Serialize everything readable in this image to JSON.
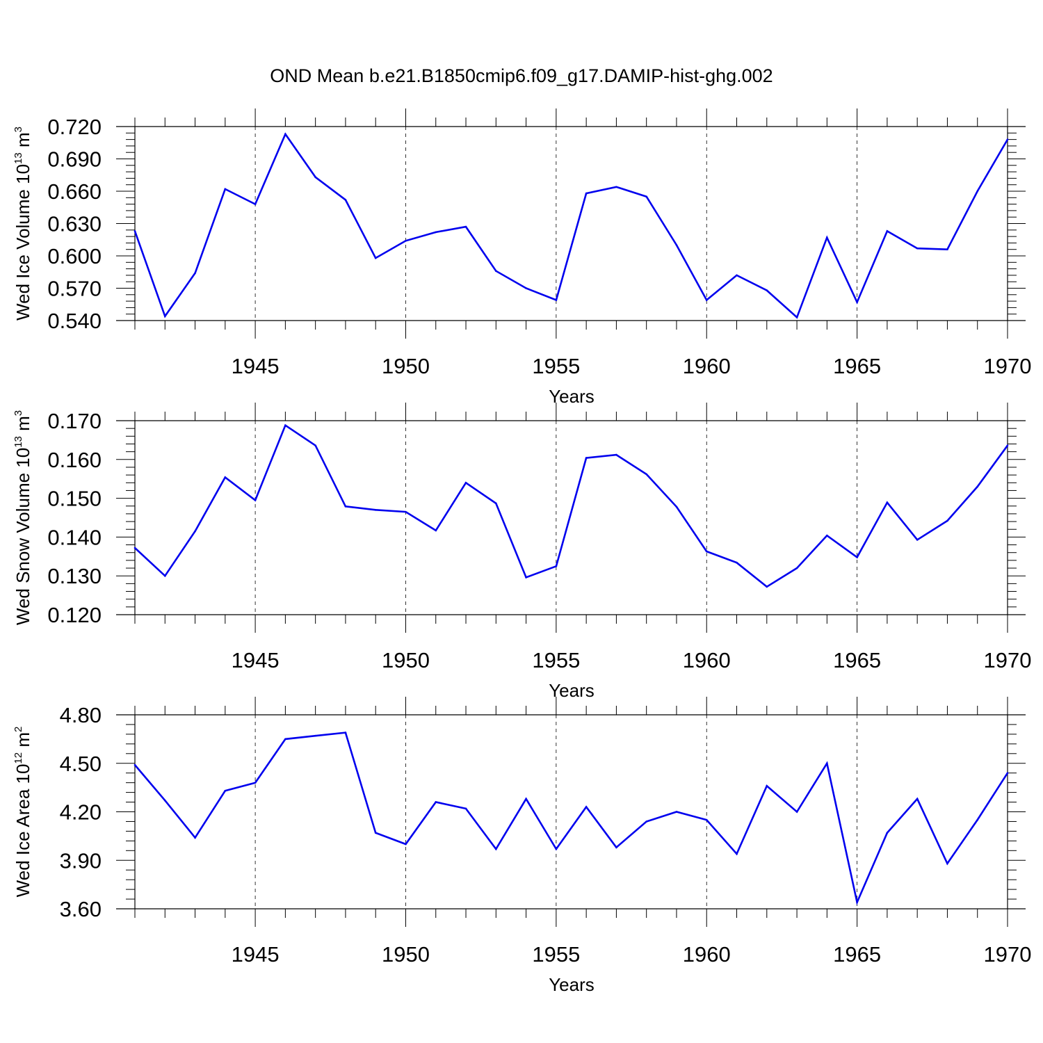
{
  "title": "OND Mean b.e21.B1850cmip6.f09_g17.DAMIP-hist-ghg.002",
  "colors": {
    "series": "#0000ee",
    "axis": "#000000",
    "grid": "#000000"
  },
  "chart_data": [
    {
      "type": "line",
      "series_name": "Wed Ice Volume",
      "ylabel": {
        "prefix": "Wed Ice Volume 10",
        "exp": "13",
        "unit": " m",
        "unit_exp": "3"
      },
      "xlabel": "Years",
      "xlim": [
        1941,
        1970
      ],
      "ylim": [
        0.54,
        0.72
      ],
      "yticks": [
        "0.720",
        "0.690",
        "0.660",
        "0.630",
        "0.600",
        "0.570",
        "0.540"
      ],
      "ytick_values": [
        0.72,
        0.69,
        0.66,
        0.63,
        0.6,
        0.57,
        0.54
      ],
      "xticks": [
        "1945",
        "1950",
        "1955",
        "1960",
        "1965",
        "1970"
      ],
      "xtick_values": [
        1945,
        1950,
        1955,
        1960,
        1965,
        1970
      ],
      "x": [
        1941,
        1942,
        1943,
        1944,
        1945,
        1946,
        1947,
        1948,
        1949,
        1950,
        1951,
        1952,
        1953,
        1954,
        1955,
        1956,
        1957,
        1958,
        1959,
        1960,
        1961,
        1962,
        1963,
        1964,
        1965,
        1966,
        1967,
        1968,
        1969,
        1970
      ],
      "values": [
        0.623,
        0.544,
        0.584,
        0.662,
        0.648,
        0.713,
        0.673,
        0.652,
        0.598,
        0.614,
        0.622,
        0.627,
        0.586,
        0.57,
        0.559,
        0.658,
        0.664,
        0.655,
        0.61,
        0.559,
        0.582,
        0.568,
        0.543,
        0.617,
        0.557,
        0.623,
        0.607,
        0.606,
        0.66,
        0.708
      ],
      "grid": "vertical dashed at major x ticks"
    },
    {
      "type": "line",
      "series_name": "Wed Snow Volume",
      "ylabel": {
        "prefix": "Wed Snow Volume 10",
        "exp": "13",
        "unit": " m",
        "unit_exp": "3"
      },
      "xlabel": "Years",
      "xlim": [
        1941,
        1970
      ],
      "ylim": [
        0.12,
        0.17
      ],
      "yticks": [
        "0.170",
        "0.160",
        "0.150",
        "0.140",
        "0.130",
        "0.120"
      ],
      "ytick_values": [
        0.17,
        0.16,
        0.15,
        0.14,
        0.13,
        0.12
      ],
      "xticks": [
        "1945",
        "1950",
        "1955",
        "1960",
        "1965",
        "1970"
      ],
      "xtick_values": [
        1945,
        1950,
        1955,
        1960,
        1965,
        1970
      ],
      "x": [
        1941,
        1942,
        1943,
        1944,
        1945,
        1946,
        1947,
        1948,
        1949,
        1950,
        1951,
        1952,
        1953,
        1954,
        1955,
        1956,
        1957,
        1958,
        1959,
        1960,
        1961,
        1962,
        1963,
        1964,
        1965,
        1966,
        1967,
        1968,
        1969,
        1970
      ],
      "values": [
        0.1372,
        0.13,
        0.1415,
        0.1554,
        0.1495,
        0.1688,
        0.1636,
        0.1479,
        0.147,
        0.1465,
        0.1417,
        0.154,
        0.1487,
        0.1296,
        0.1325,
        0.1604,
        0.1612,
        0.1562,
        0.1478,
        0.1363,
        0.1334,
        0.1272,
        0.132,
        0.1404,
        0.1348,
        0.1489,
        0.1393,
        0.1442,
        0.153,
        0.1636
      ],
      "grid": "vertical dashed at major x ticks"
    },
    {
      "type": "line",
      "series_name": "Wed Ice Area",
      "ylabel": {
        "prefix": "Wed Ice Area 10",
        "exp": "12",
        "unit": " m",
        "unit_exp": "2"
      },
      "xlabel": "Years",
      "xlim": [
        1941,
        1970
      ],
      "ylim": [
        3.6,
        4.8
      ],
      "yticks": [
        "4.80",
        "4.50",
        "4.20",
        "3.90",
        "3.60"
      ],
      "ytick_values": [
        4.8,
        4.5,
        4.2,
        3.9,
        3.6
      ],
      "xticks": [
        "1945",
        "1950",
        "1955",
        "1960",
        "1965",
        "1970"
      ],
      "xtick_values": [
        1945,
        1950,
        1955,
        1960,
        1965,
        1970
      ],
      "x": [
        1941,
        1942,
        1943,
        1944,
        1945,
        1946,
        1947,
        1948,
        1949,
        1950,
        1951,
        1952,
        1953,
        1954,
        1955,
        1956,
        1957,
        1958,
        1959,
        1960,
        1961,
        1962,
        1963,
        1964,
        1965,
        1966,
        1967,
        1968,
        1969,
        1970
      ],
      "values": [
        4.49,
        4.27,
        4.04,
        4.33,
        4.38,
        4.65,
        4.67,
        4.69,
        4.07,
        4.0,
        4.26,
        4.22,
        3.97,
        4.28,
        3.97,
        4.23,
        3.98,
        4.14,
        4.2,
        4.15,
        3.94,
        4.36,
        4.2,
        4.5,
        3.64,
        4.07,
        4.28,
        3.88,
        4.15,
        4.44
      ],
      "grid": "vertical dashed at major x ticks"
    }
  ]
}
